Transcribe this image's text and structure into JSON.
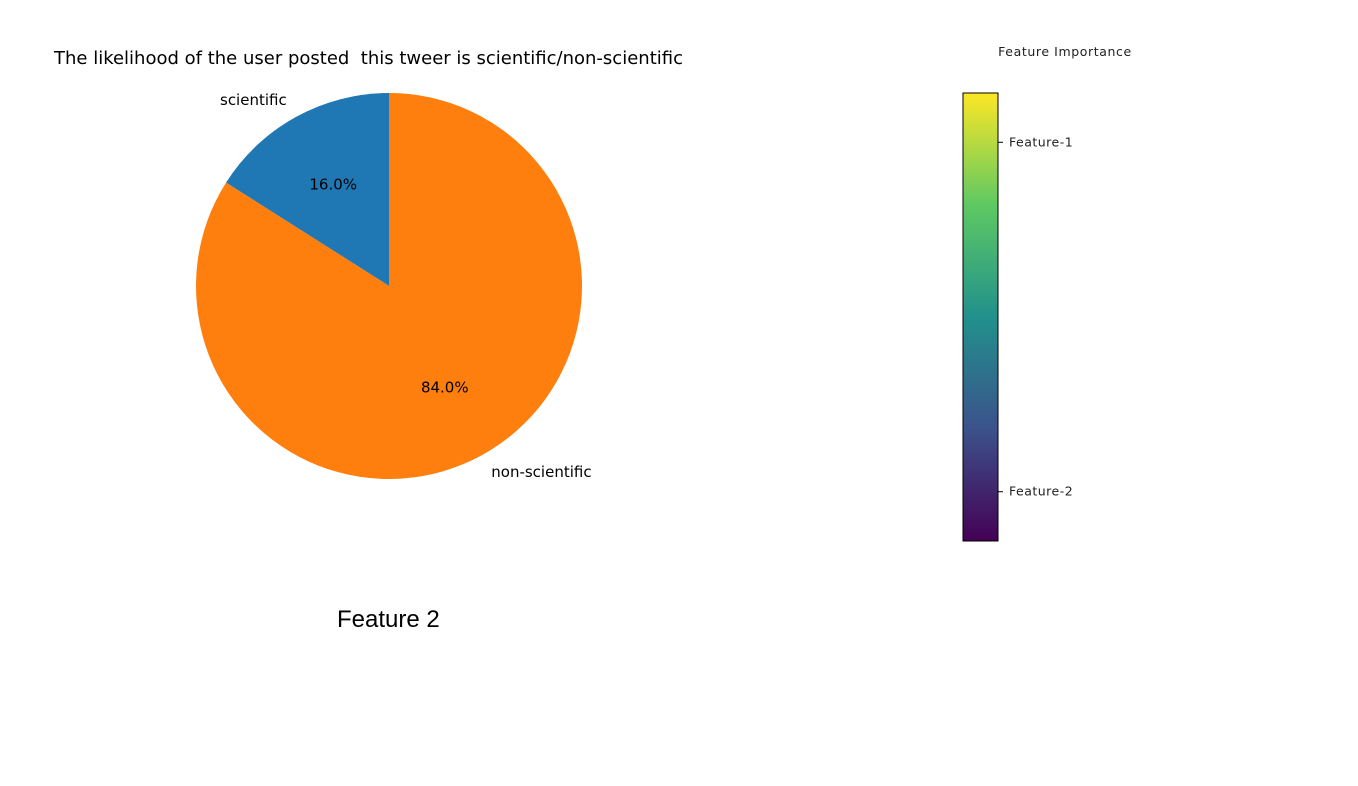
{
  "caption": "Feature 2",
  "chart_data": [
    {
      "type": "pie",
      "title": "The likelihood of the user posted  this tweer is scientific/non-scientific",
      "categories": [
        "scientific",
        "non-scientific"
      ],
      "values": [
        16.0,
        84.0
      ],
      "autopct": [
        "16.0%",
        "84.0%"
      ],
      "colors": [
        "#1f77b4",
        "#ff7f0e"
      ],
      "start_angle_deg": 90,
      "direction": "counterclockwise"
    },
    {
      "type": "colorbar",
      "title": "Feature Importance",
      "colormap": "viridis",
      "colormap_stops": [
        "#440154",
        "#3b528b",
        "#21918c",
        "#5ec962",
        "#fde725"
      ],
      "tick_labels": [
        "Feature-1",
        "Feature-2"
      ],
      "tick_positions": [
        0.89,
        0.11
      ]
    }
  ]
}
